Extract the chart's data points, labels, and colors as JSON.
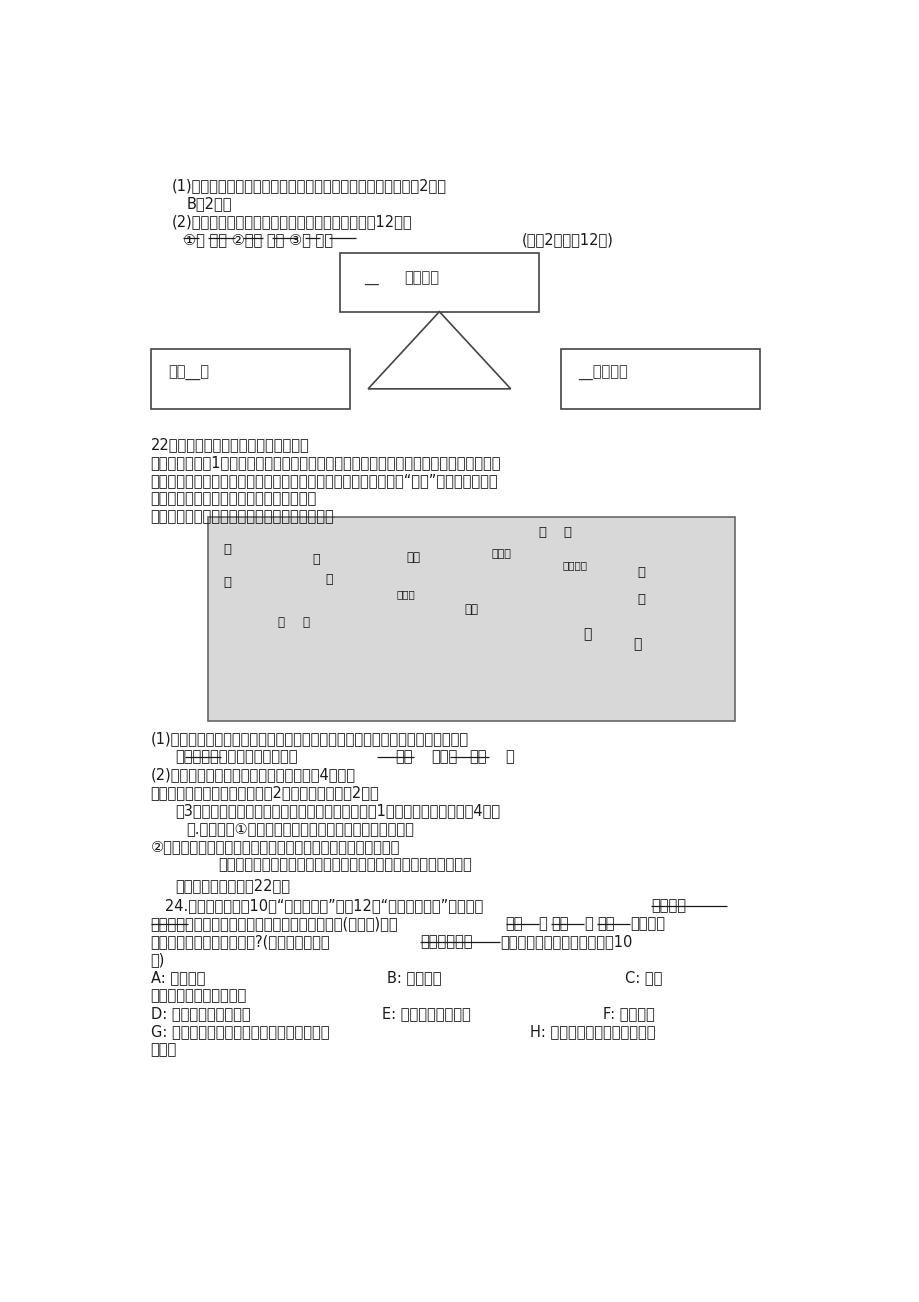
{
  "bg_color": "#ffffff",
  "text_color": "#1a1a1a",
  "body_fontsize": 10.5,
  "line1": "(1)图中哪个字母是表示促使三国鼎立局面形成的著名战场？（2分）",
  "line2": "B（2分）",
  "line3": "(2)结合右图将下列三国鼎立的示意图补充完整：（12分）",
  "line4a": "①魏 洛阳 ②刘备 成都 ③吴 建业",
  "line4b": "(每空2分，共12分)",
  "box_top_text1": "__",
  "box_top_text2": "（曹丕）",
  "box_bl_text": "蜀（__）",
  "box_br_text": "__（孙权）",
  "q22": "22．阅读下列材料和路线图回答问题：",
  "mat1_l1": "材料一：公元前1世纪的某一天，古罗马的执政官凯撒大帝穿着灿若朝霞的丝织长袍进入剧",
  "mat1_l2": "场，在场的百官以及贵夫人们惊叹声此起彼伏，觉得凯撒大帝简直“帅呆”了。于是穿中国",
  "mat1_l3": "锦衣绣服，成为当时男女贵族的流行时尚。",
  "mat2": "材料二：下图是古代著名中西陆上交通示意图：",
  "qa1": "(1)凯撒大帝的丝袍是通过材料二中的这条中西通道得到的，请说出这条通道的：",
  "qa1b_1": "名称：丝绸之路，当时东起中国",
  "qa1b_2": "长安",
  "qa1b_3": "，西至",
  "qa1b_4": "大秦",
  "qa1b_5": "。",
  "qa2": "(2)图中这条通道在当时发挥了什么作用（4分）？",
  "qa2a": "促进了中外（或东西方）经济（2分）和文化交流（2分）",
  "qa3": "（3）这条通道对我们今天的现实生活还有价值吗（1分）？说出你的理由（4分）",
  "qa3a": "有.理由：例①丝绸之路在今天仍是中西交往重要交通通道",
  "qa3b": "②丝绸之路在我国当今对外经济文化交流中仍然发挥着重要作用",
  "qa3c": "（只要言之有理，并正确表述两层符合题意的相关理由即可得分）",
  "s3": "三、探究与实践（共22分）",
  "q24_1": "   24.雪山同学学完第10课“秦王扫六合”和第12课“大一统的汉朝”后，决定",
  "q24_1b": "设计一张",
  "q24_2a": "表格，对秦始皇和汉武帝加强中央集权的主要史实(见下面)，从",
  "q24_2b": "政治",
  "q24_2c": "、",
  "q24_2d": "经济",
  "q24_2e": "、",
  "q24_2f": "文化",
  "q24_2g": "方面进行",
  "q24_3a": "分类整理归纳，应如何完成?(主要史实只需将",
  "q24_3b": "相应字母代号",
  "q24_3c": "填入你设计的表格中即可，共10",
  "q24_4": "分)",
  "itemA": "A: 治理黄河",
  "itemB": "B: 焚书坑儒",
  "itemC": "C: 铸币",
  "itemC2": "权和盐铁经营权收归中央",
  "itemD": "D: 罢黜百家，独尊儒术",
  "itemE": "E: 统一货币、度量衡",
  "itemF": "F: 统一文字",
  "itemG": "G: 允许诸王分封自己土地，削弱诸侯国势力",
  "itemH": "H: 创立封建专制主义的中央集",
  "itemH2": "权制度"
}
